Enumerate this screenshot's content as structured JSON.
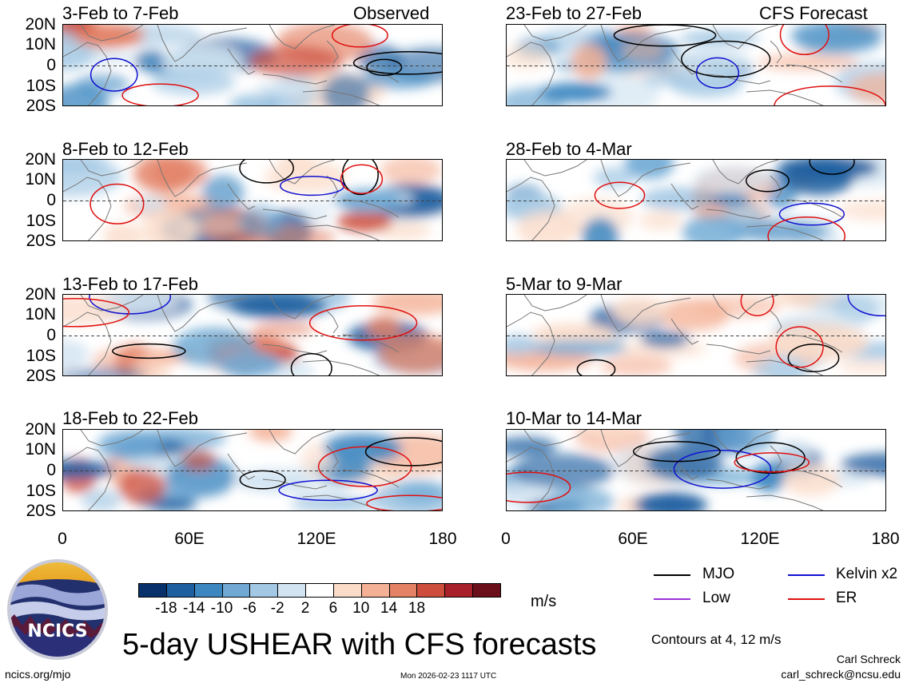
{
  "observed_label": "Observed",
  "forecast_label": "CFS Forecast",
  "panels_left": [
    {
      "title": "3-Feb to 7-Feb"
    },
    {
      "title": "8-Feb to 12-Feb"
    },
    {
      "title": "13-Feb to 17-Feb"
    },
    {
      "title": "18-Feb to 22-Feb"
    }
  ],
  "panels_right": [
    {
      "title": "23-Feb to 27-Feb"
    },
    {
      "title": "28-Feb to 4-Mar"
    },
    {
      "title": "5-Mar to 9-Mar"
    },
    {
      "title": "10-Mar to 14-Mar"
    }
  ],
  "lat_labels": [
    "20N",
    "10N",
    "0",
    "10S",
    "20S"
  ],
  "lon_labels": [
    "0",
    "60E",
    "120E",
    "180"
  ],
  "colorbar": {
    "labels": [
      "-18",
      "-14",
      "-10",
      "-6",
      "-2",
      "2",
      "6",
      "10",
      "14",
      "18"
    ],
    "colors": [
      "#08306b",
      "#1e5fa0",
      "#3d87c0",
      "#6fa9d4",
      "#a3c8e4",
      "#d2e4f1",
      "#ffffff",
      "#fbdcc9",
      "#f4b196",
      "#e48266",
      "#cd4e3c",
      "#a8202a",
      "#6b0f1b"
    ],
    "units": "m/s"
  },
  "legend": {
    "mjo": "MJO",
    "kelvin": "Kelvin x2",
    "low": "Low",
    "er": "ER",
    "colors": {
      "mjo": "#000000",
      "kelvin": "#1010d0",
      "low": "#9a30d8",
      "er": "#e01010"
    }
  },
  "contours_note": "Contours at 4, 12 m/s",
  "main_title": "5-day USHEAR with CFS forecasts",
  "logo_text": "NCICS",
  "author": "Carl Schreck",
  "email": "carl_schreck@ncsu.edu",
  "url": "ncics.org/mjo",
  "timestamp": "Mon 2026-02-23 1117 UTC"
}
